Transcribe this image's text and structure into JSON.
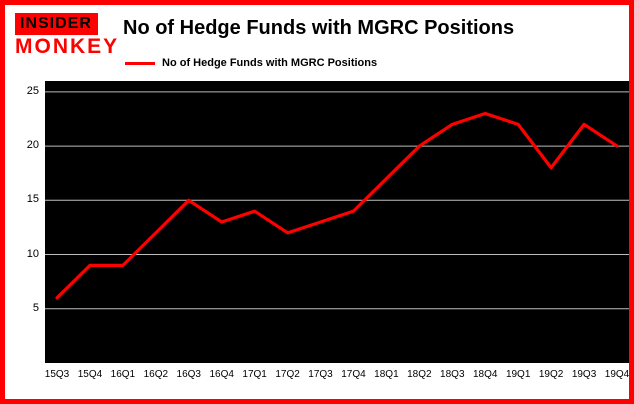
{
  "logo": {
    "line1": "INSIDER",
    "line2": "MONKEY"
  },
  "header": {
    "title": "No of Hedge Funds with MGRC Positions"
  },
  "legend": {
    "label": "No of Hedge Funds with MGRC Positions"
  },
  "colors": {
    "accent_red": "#fe0000",
    "line": "#fe0000",
    "plot_background": "#000000",
    "grid": "#bdbdbd",
    "text": "#000000",
    "page_background": "#ffffff"
  },
  "chart_data": {
    "type": "line",
    "title": "No of Hedge Funds with MGRC Positions",
    "xlabel": "",
    "ylabel": "",
    "categories": [
      "15Q3",
      "15Q4",
      "16Q1",
      "16Q2",
      "16Q3",
      "16Q4",
      "17Q1",
      "17Q2",
      "17Q3",
      "17Q4",
      "18Q1",
      "18Q2",
      "18Q3",
      "18Q4",
      "19Q1",
      "19Q2",
      "19Q3",
      "19Q4"
    ],
    "values": [
      6,
      9,
      9,
      12,
      15,
      13,
      14,
      12,
      13,
      14,
      17,
      20,
      22,
      23,
      22,
      18,
      22,
      20
    ],
    "ylim": [
      0,
      26
    ],
    "yticks": [
      5,
      10,
      15,
      20,
      25
    ],
    "grid": "horizontal",
    "legend_position": "top-left",
    "line_color": "#fe0000",
    "background": "#000000"
  }
}
